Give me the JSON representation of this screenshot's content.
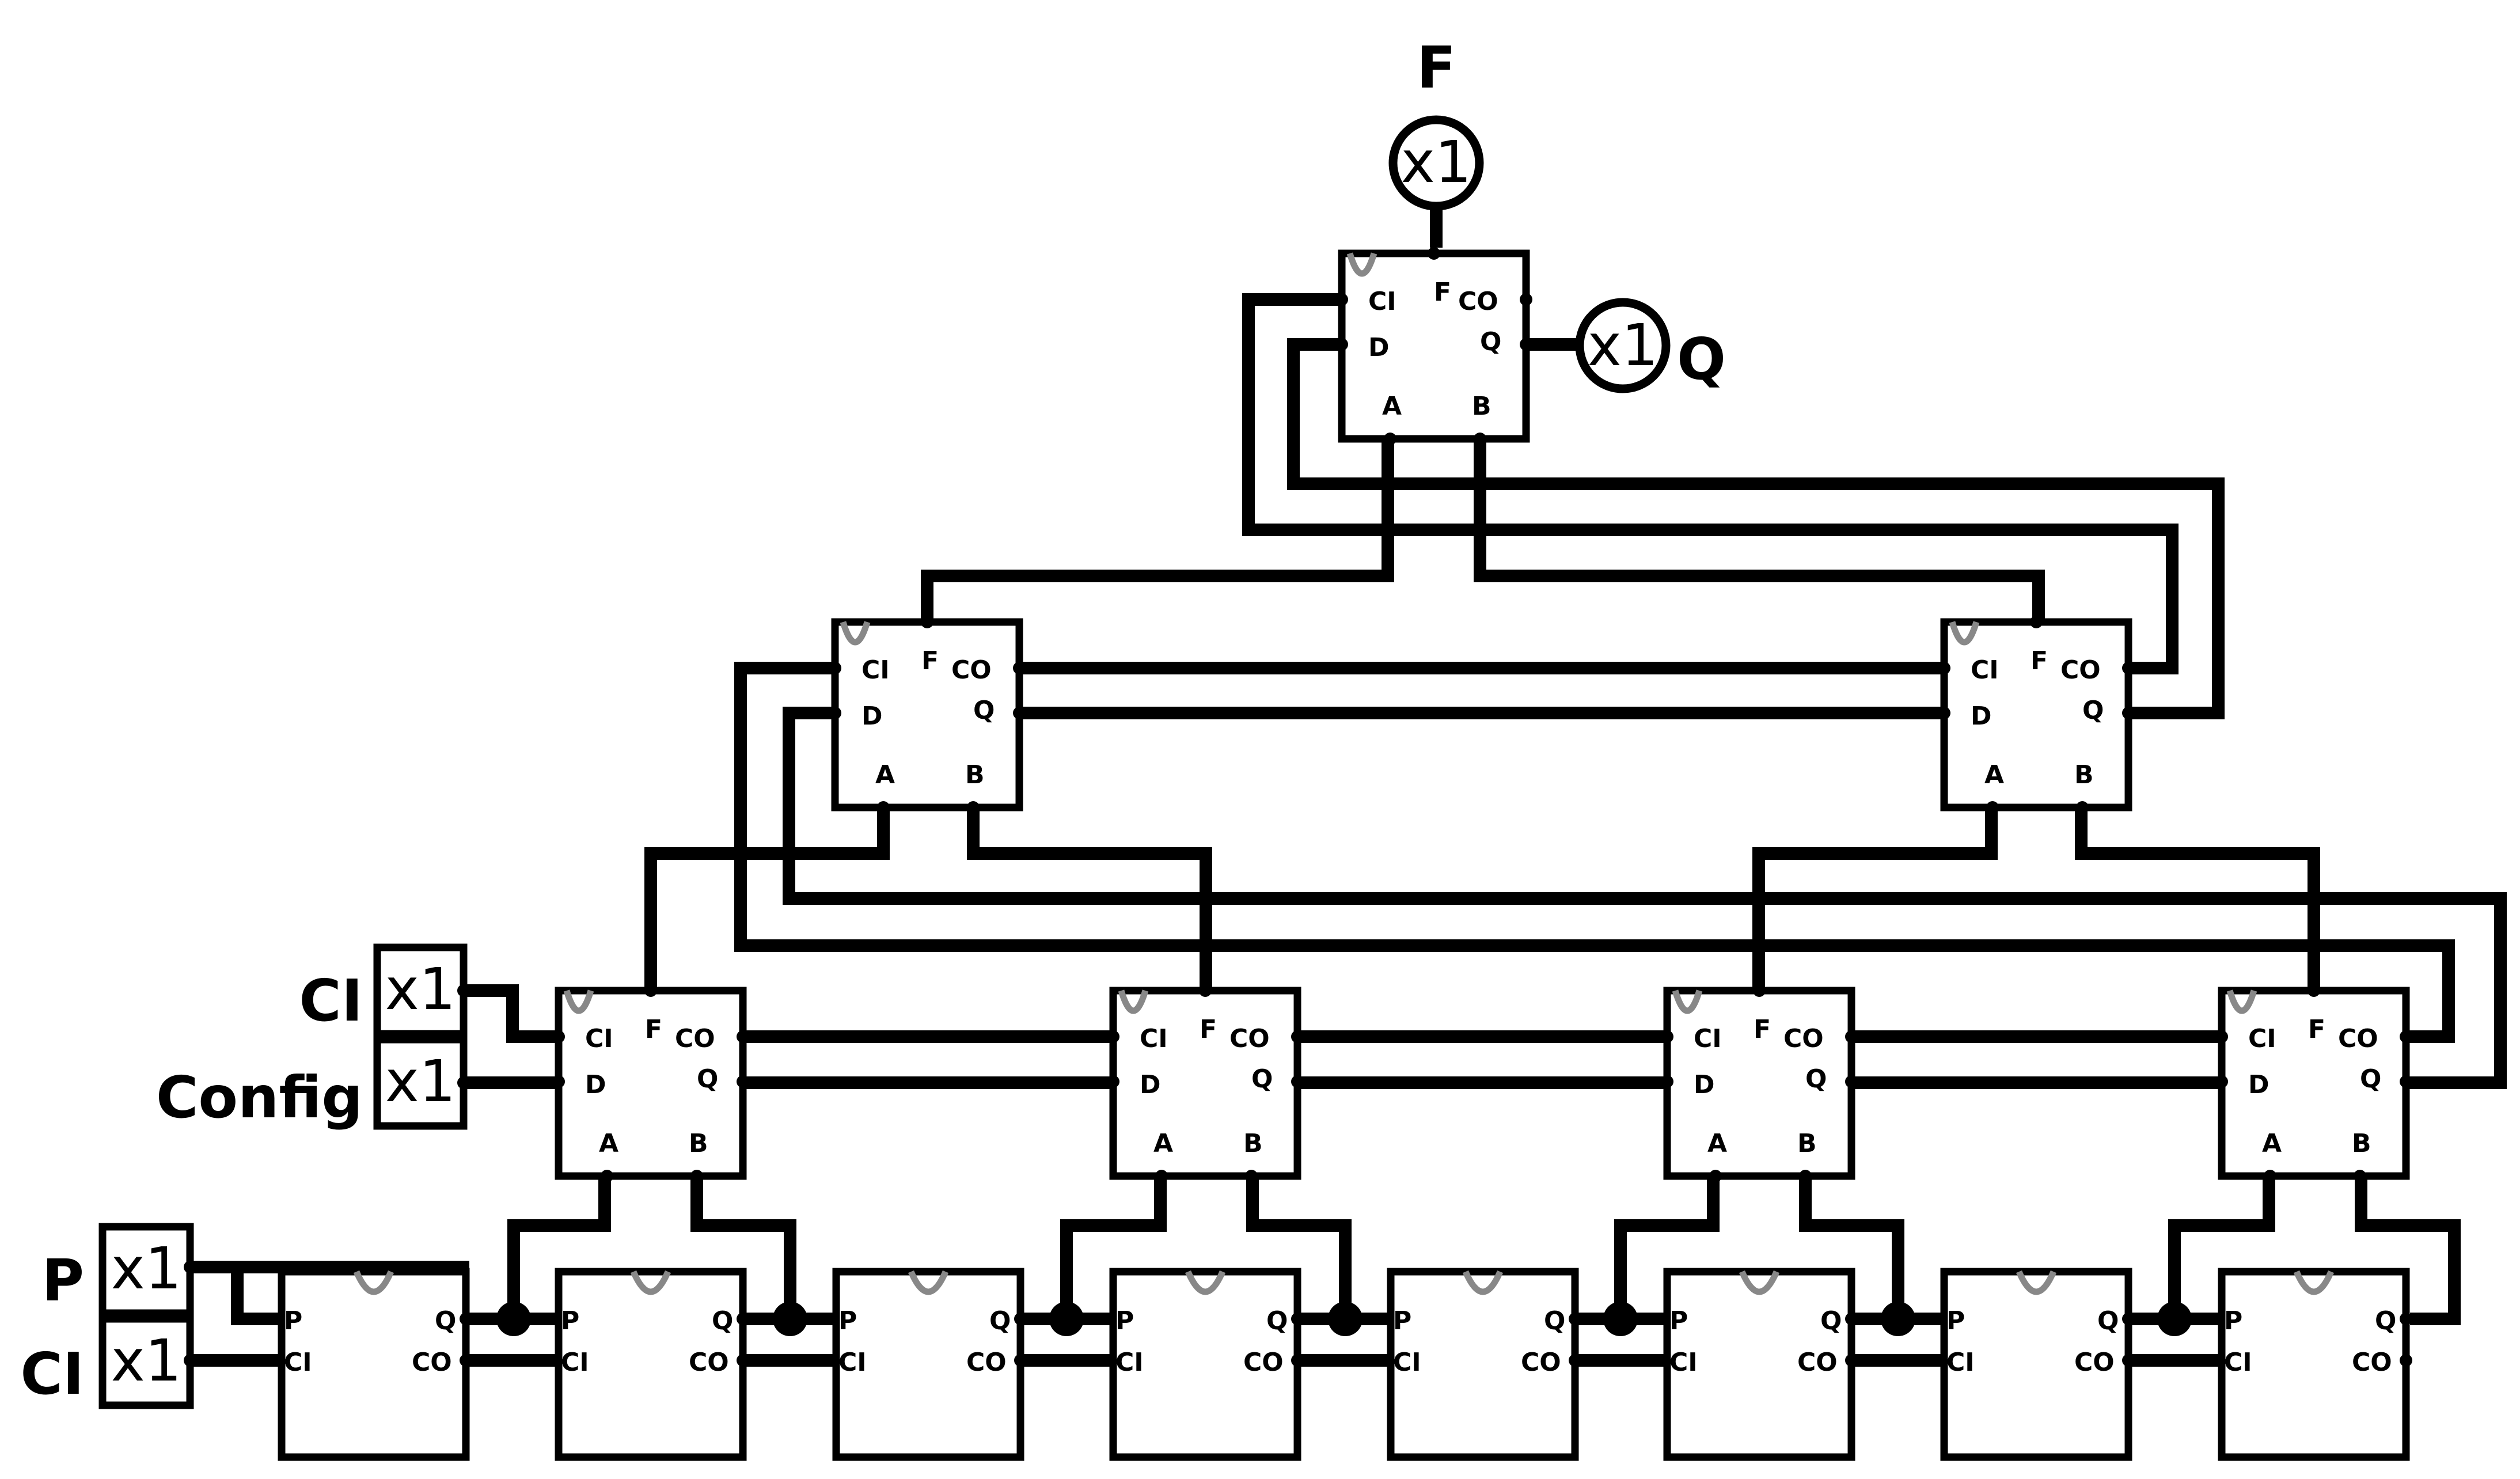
{
  "labels": {
    "ci_in": "CI",
    "config_in": "Config",
    "p_in": "P",
    "ci_in_bottom": "CI",
    "f_out": "F",
    "q_out": "Q",
    "buffer": "x1"
  },
  "pins": {
    "ci": "CI",
    "co": "CO",
    "d": "D",
    "q": "Q",
    "f": "F",
    "a": "A",
    "b": "B",
    "p": "P"
  },
  "icons": {
    "register_clock": "sine-wave-icon"
  },
  "colors": {
    "wire": "#000000",
    "clock_arc": "#888888"
  }
}
